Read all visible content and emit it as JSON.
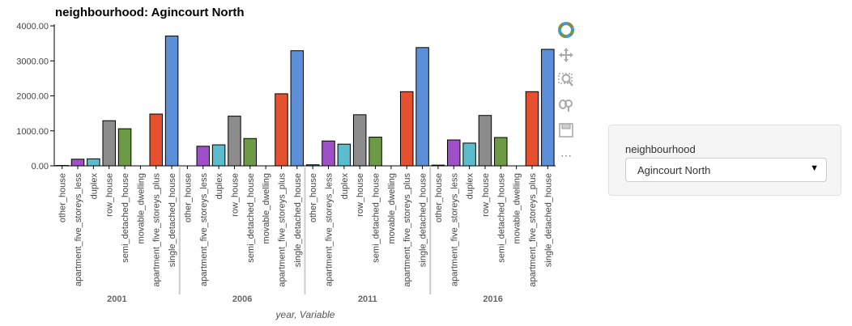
{
  "chart_data": {
    "type": "bar",
    "title": "neighbourhood: Agincourt North",
    "xlabel": "year, Variable",
    "ylabel": "",
    "ylim": [
      0,
      4000
    ],
    "yticks": [
      "0.00",
      "1000.00",
      "2000.00",
      "3000.00",
      "4000.00"
    ],
    "grid": false,
    "groups": [
      "2001",
      "2006",
      "2011",
      "2016"
    ],
    "categories": [
      "other_house",
      "apartment_five_storeys_less",
      "duplex",
      "row_house",
      "semi_detached_house",
      "movable_dwelling",
      "apartment_five_storeys_plus",
      "single_detached_house"
    ],
    "colors": [
      "#30a2da",
      "#9f50c8",
      "#5bbccd",
      "#8c8c8c",
      "#6d9a45",
      "#e0803a",
      "#e5512f",
      "#5c8fd8"
    ],
    "values": [
      [
        10,
        190,
        200,
        1290,
        1060,
        0,
        1480,
        3710
      ],
      [
        0,
        560,
        600,
        1420,
        780,
        0,
        2060,
        3290
      ],
      [
        30,
        710,
        620,
        1460,
        820,
        0,
        2120,
        3380
      ],
      [
        20,
        740,
        650,
        1440,
        810,
        0,
        2120,
        3330
      ]
    ]
  },
  "toolbar": {
    "icons": [
      "bokeh-logo-icon",
      "pan-icon",
      "box-zoom-icon",
      "wheel-zoom-icon",
      "save-icon",
      "more-icon"
    ],
    "more_label": "⋯"
  },
  "widget": {
    "label": "neighbourhood",
    "selected": "Agincourt North",
    "caret": "▼"
  }
}
